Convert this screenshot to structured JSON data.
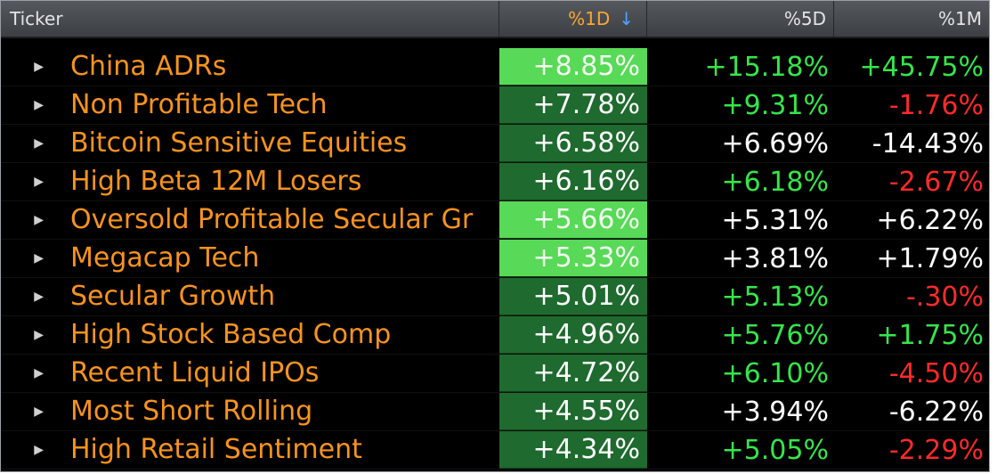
{
  "colors": {
    "label": "#f7931e",
    "header_bg": "#4a4e53",
    "cell_1d_dark": "#1f6a2e",
    "cell_1d_bright": "#58d957",
    "positive": "#35e64a",
    "negative": "#ff2a2a",
    "neutral": "#ffffff"
  },
  "header": {
    "ticker": "Ticker",
    "pct_1d": "%1D",
    "sort_icon": "arrow-down-icon",
    "pct_5d": "%5D",
    "pct_1m": "%1M"
  },
  "rows": [
    {
      "name": "China ADRs",
      "d1": "+8.85%",
      "d1_highlight": true,
      "d5": "+15.18%",
      "d5_tone": "pos",
      "m1": "+45.75%",
      "m1_tone": "pos"
    },
    {
      "name": "Non Profitable Tech",
      "d1": "+7.78%",
      "d1_highlight": false,
      "d5": "+9.31%",
      "d5_tone": "pos",
      "m1": "-1.76%",
      "m1_tone": "neg"
    },
    {
      "name": "Bitcoin Sensitive Equities",
      "d1": "+6.58%",
      "d1_highlight": false,
      "d5": "+6.69%",
      "d5_tone": "neu",
      "m1": "-14.43%",
      "m1_tone": "neu"
    },
    {
      "name": "High Beta 12M Losers",
      "d1": "+6.16%",
      "d1_highlight": false,
      "d5": "+6.18%",
      "d5_tone": "pos",
      "m1": "-2.67%",
      "m1_tone": "neg"
    },
    {
      "name": "Oversold Profitable Secular Gr",
      "d1": "+5.66%",
      "d1_highlight": true,
      "d5": "+5.31%",
      "d5_tone": "neu",
      "m1": "+6.22%",
      "m1_tone": "neu"
    },
    {
      "name": "Megacap Tech",
      "d1": "+5.33%",
      "d1_highlight": true,
      "d5": "+3.81%",
      "d5_tone": "neu",
      "m1": "+1.79%",
      "m1_tone": "neu"
    },
    {
      "name": "Secular Growth",
      "d1": "+5.01%",
      "d1_highlight": false,
      "d5": "+5.13%",
      "d5_tone": "pos",
      "m1": "-.30%",
      "m1_tone": "neg"
    },
    {
      "name": "High Stock Based Comp",
      "d1": "+4.96%",
      "d1_highlight": false,
      "d5": "+5.76%",
      "d5_tone": "pos",
      "m1": "+1.75%",
      "m1_tone": "pos"
    },
    {
      "name": "Recent Liquid IPOs",
      "d1": "+4.72%",
      "d1_highlight": false,
      "d5": "+6.10%",
      "d5_tone": "pos",
      "m1": "-4.50%",
      "m1_tone": "neg"
    },
    {
      "name": "Most Short Rolling",
      "d1": "+4.55%",
      "d1_highlight": false,
      "d5": "+3.94%",
      "d5_tone": "neu",
      "m1": "-6.22%",
      "m1_tone": "neu"
    },
    {
      "name": "High Retail Sentiment",
      "d1": "+4.34%",
      "d1_highlight": false,
      "d5": "+5.05%",
      "d5_tone": "pos",
      "m1": "-2.29%",
      "m1_tone": "neg"
    }
  ]
}
